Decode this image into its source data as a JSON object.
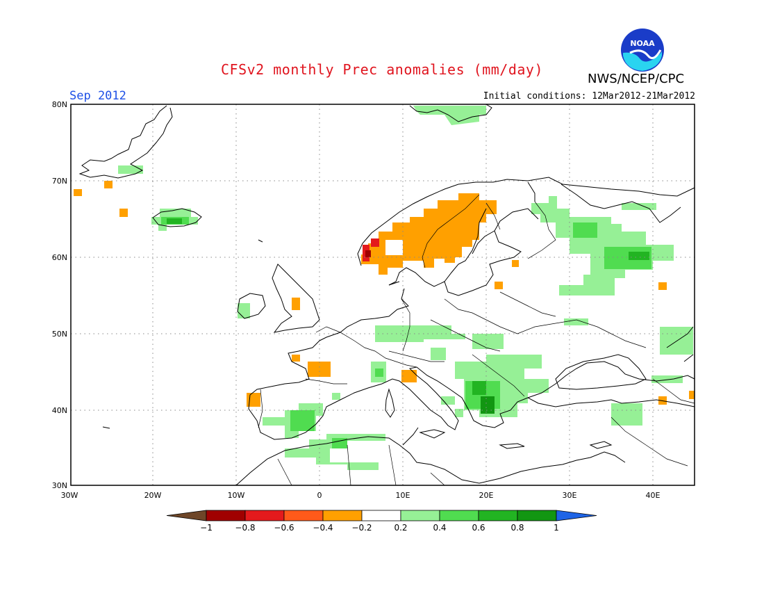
{
  "title": "CFSv2 monthly Prec anomalies (mm/day)",
  "organization": "NWS/NCEP/CPC",
  "logo_text": "NOAA",
  "valid_month": "Sep 2012",
  "initial_conditions": "Initial conditions: 12Mar2012-21Mar2012",
  "map": {
    "region": "Europe",
    "lon_range": [
      -30,
      45
    ],
    "lat_range": [
      30,
      80
    ],
    "lat_labels": [
      "80N",
      "70N",
      "60N",
      "50N",
      "40N",
      "30N"
    ],
    "lon_labels": [
      "30W",
      "20W",
      "10W",
      "0",
      "10E",
      "20E",
      "30E",
      "40E"
    ],
    "grid": "dotted"
  },
  "colorbar": {
    "ticks": [
      "-1",
      "-0.8",
      "-0.6",
      "-0.4",
      "-0.2",
      "0.2",
      "0.4",
      "0.6",
      "0.8",
      "1"
    ],
    "colors": [
      "#6e4628",
      "#a00000",
      "#e41a1c",
      "#ff5a1a",
      "#ffa000",
      "#ffffff",
      "#96f096",
      "#50dc50",
      "#22b422",
      "#129612",
      "#1e64e6"
    ]
  },
  "anomaly_regions": [
    {
      "area": "Norway/Sweden/Finland",
      "category": "-0.4 to -0.2"
    },
    {
      "area": "Western Norway coast",
      "category": "-0.8 to -0.4"
    },
    {
      "area": "NW Russia",
      "category": "0.2 to 0.6"
    },
    {
      "area": "Iceland",
      "category": "0.2 to 0.6"
    },
    {
      "area": "Central Europe",
      "category": "0.2 to 0.4"
    },
    {
      "area": "Balkans",
      "category": "0.2 to 0.8"
    },
    {
      "area": "Iberia / N Africa",
      "category": "0.2 to 0.6"
    },
    {
      "area": "Svalbard",
      "category": "0.2 to 0.4"
    }
  ]
}
